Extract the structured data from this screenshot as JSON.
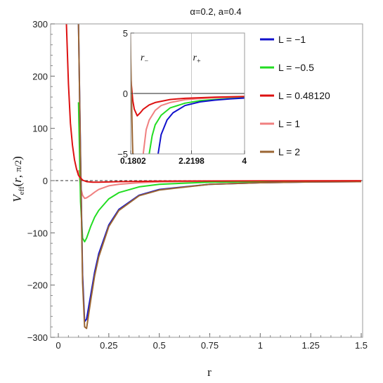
{
  "chart_data": [
    {
      "type": "line",
      "title": "α=0.2,  a=0.4",
      "xlabel": "r",
      "ylabel": "V_eff(r, π/2)",
      "xlim": [
        0,
        1.5
      ],
      "ylim": [
        -300,
        300
      ],
      "x_ticks": [
        "0",
        "0.25",
        "0.5",
        "0.75",
        "1",
        "1.25",
        "1.5"
      ],
      "y_ticks": [
        "300",
        "200",
        "100",
        "0",
        "−100",
        "−200",
        "−300"
      ],
      "legend_position": "right",
      "series": [
        {
          "name": "L = −1",
          "color": "#1111cc",
          "x": [
            0.1,
            0.11,
            0.12,
            0.13,
            0.14,
            0.16,
            0.18,
            0.2,
            0.25,
            0.3,
            0.4,
            0.5,
            0.75,
            1.0,
            1.25,
            1.5
          ],
          "y": [
            300,
            50,
            -180,
            -270,
            -265,
            -220,
            -175,
            -140,
            -85,
            -55,
            -28,
            -17,
            -7,
            -4,
            -2.5,
            -2
          ]
        },
        {
          "name": "L = −0.5",
          "color": "#22dd22",
          "x": [
            0.1,
            0.11,
            0.12,
            0.13,
            0.14,
            0.16,
            0.18,
            0.2,
            0.25,
            0.3,
            0.4,
            0.5,
            0.75,
            1.0,
            1.25,
            1.5
          ],
          "y": [
            150,
            -40,
            -110,
            -117,
            -110,
            -88,
            -70,
            -57,
            -35,
            -23,
            -12,
            -7,
            -3,
            -2,
            -1.5,
            -1
          ]
        },
        {
          "name": "L =  0.48120",
          "color": "#dd1111",
          "x": [
            0.04,
            0.05,
            0.06,
            0.07,
            0.08,
            0.09,
            0.1,
            0.12,
            0.14,
            0.17,
            0.2,
            0.3,
            0.5,
            1.0,
            1.5
          ],
          "y": [
            300,
            185,
            110,
            68,
            40,
            22,
            10,
            1,
            -2,
            -3,
            -3,
            -2,
            -1,
            -0.5,
            -0.3
          ]
        },
        {
          "name": "L =  1",
          "color": "#f08080",
          "x": [
            0.1,
            0.11,
            0.12,
            0.13,
            0.14,
            0.16,
            0.18,
            0.2,
            0.25,
            0.3,
            0.4,
            0.5,
            0.75,
            1.0,
            1.5
          ],
          "y": [
            20,
            -12,
            -28,
            -34,
            -33,
            -28,
            -22,
            -17,
            -10,
            -7,
            -4,
            -2.5,
            -1.2,
            -0.8,
            -0.4
          ]
        },
        {
          "name": "L =  2",
          "color": "#9b6633",
          "x": [
            0.1,
            0.11,
            0.12,
            0.13,
            0.14,
            0.16,
            0.18,
            0.2,
            0.25,
            0.3,
            0.4,
            0.5,
            0.75,
            1.0,
            1.25,
            1.5
          ],
          "y": [
            300,
            40,
            -195,
            -280,
            -283,
            -230,
            -182,
            -146,
            -88,
            -57,
            -29,
            -18,
            -7,
            -4,
            -2.5,
            -2
          ]
        }
      ]
    },
    {
      "type": "line",
      "name": "inset",
      "xlim": [
        0.1802,
        4
      ],
      "ylim": [
        -5,
        5
      ],
      "x_ticks": [
        "0.1802",
        "2.2198",
        "4"
      ],
      "y_ticks": [
        "5",
        "0",
        "−5"
      ],
      "annotations": [
        {
          "text": "r",
          "sub": "−",
          "x": 0.1802
        },
        {
          "text": "r",
          "sub": "+",
          "x": 2.2198
        }
      ],
      "series": [
        {
          "name": "L = −1",
          "color": "#1111cc",
          "x": [
            1.1,
            1.2,
            1.4,
            1.6,
            2.0,
            2.5,
            3.0,
            3.5,
            4.0
          ],
          "y": [
            -5,
            -3.4,
            -2.2,
            -1.6,
            -1.0,
            -0.7,
            -0.55,
            -0.45,
            -0.38
          ]
        },
        {
          "name": "L = −0.5",
          "color": "#22dd22",
          "x": [
            0.8,
            0.9,
            1.0,
            1.2,
            1.5,
            2.0,
            2.5,
            3.0,
            3.5,
            4.0
          ],
          "y": [
            -5,
            -3.5,
            -2.6,
            -1.8,
            -1.2,
            -0.8,
            -0.6,
            -0.5,
            -0.42,
            -0.36
          ]
        },
        {
          "name": "L =  0.48120",
          "color": "#dd1111",
          "x": [
            0.12,
            0.15,
            0.2,
            0.25,
            0.3,
            0.4,
            0.5,
            0.6,
            0.8,
            1.0,
            1.5,
            2.0,
            3.0,
            4.0
          ],
          "y": [
            5,
            3.0,
            0.8,
            -0.6,
            -1.3,
            -1.85,
            -1.6,
            -1.3,
            -0.95,
            -0.75,
            -0.5,
            -0.4,
            -0.3,
            -0.25
          ]
        },
        {
          "name": "L =  1",
          "color": "#f08080",
          "x": [
            0.6,
            0.7,
            0.8,
            1.0,
            1.2,
            1.5,
            2.0,
            2.5,
            3.0,
            4.0
          ],
          "y": [
            -5,
            -3.0,
            -2.2,
            -1.4,
            -1.0,
            -0.75,
            -0.52,
            -0.42,
            -0.35,
            -0.28
          ]
        },
        {
          "name": "L =  2",
          "color": "#9b6633",
          "x": [
            0.17,
            0.18,
            0.22,
            0.24,
            0.25
          ],
          "y": [
            5,
            3,
            -2,
            -4,
            -5
          ]
        }
      ]
    }
  ]
}
